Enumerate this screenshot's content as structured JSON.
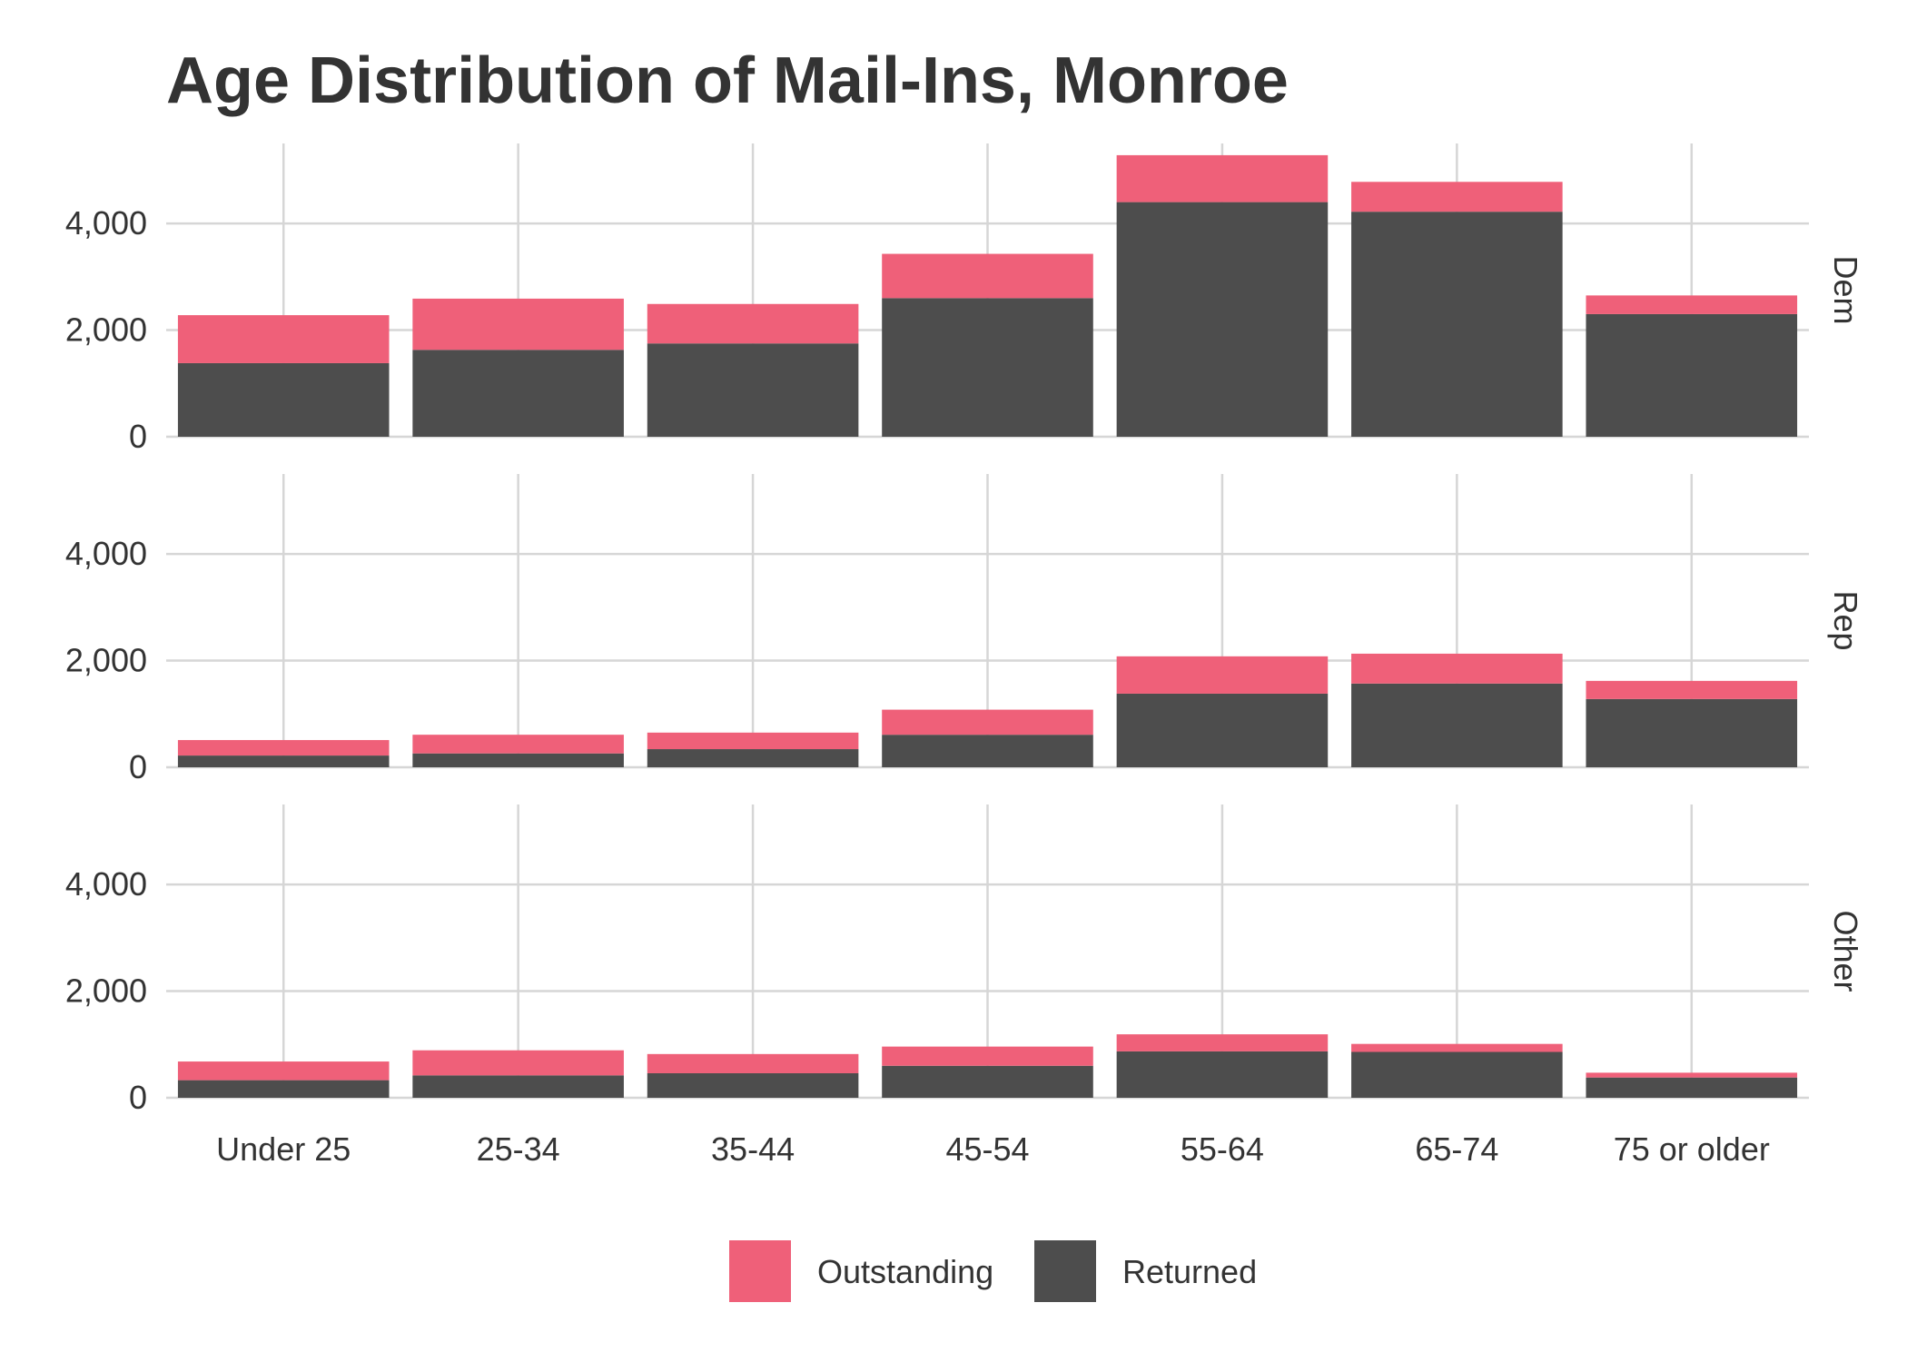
{
  "chart_data": {
    "type": "bar",
    "stacked": true,
    "title": "Age Distribution of Mail-Ins, Monroe",
    "xlabel": "",
    "ylabel": "",
    "categories": [
      "Under 25",
      "25-34",
      "35-44",
      "45-54",
      "55-64",
      "65-74",
      "75 or older"
    ],
    "ylim": [
      0,
      5500
    ],
    "yticks": [
      0,
      2000,
      4000
    ],
    "ytick_labels": [
      "0",
      "2,000",
      "4,000"
    ],
    "grid": true,
    "legend_position": "bottom",
    "stack_order": [
      "Returned",
      "Outstanding"
    ],
    "series_colors": {
      "Outstanding": "#ef6079",
      "Returned": "#4d4d4d"
    },
    "legend": [
      {
        "name": "Outstanding",
        "color": "#ef6079"
      },
      {
        "name": "Returned",
        "color": "#4d4d4d"
      }
    ],
    "facets": [
      {
        "label": "Dem",
        "series": [
          {
            "name": "Returned",
            "values": [
              1380,
              1630,
              1750,
              2600,
              4400,
              4220,
              2300
            ]
          },
          {
            "name": "Outstanding",
            "values": [
              900,
              960,
              740,
              830,
              880,
              560,
              350
            ]
          }
        ]
      },
      {
        "label": "Rep",
        "series": [
          {
            "name": "Returned",
            "values": [
              220,
              260,
              340,
              610,
              1380,
              1570,
              1280
            ]
          },
          {
            "name": "Outstanding",
            "values": [
              290,
              350,
              310,
              470,
              700,
              560,
              340
            ]
          }
        ]
      },
      {
        "label": "Other",
        "series": [
          {
            "name": "Returned",
            "values": [
              330,
              420,
              460,
              600,
              870,
              860,
              380
            ]
          },
          {
            "name": "Outstanding",
            "values": [
              350,
              470,
              360,
              360,
              320,
              150,
              90
            ]
          }
        ]
      }
    ]
  }
}
